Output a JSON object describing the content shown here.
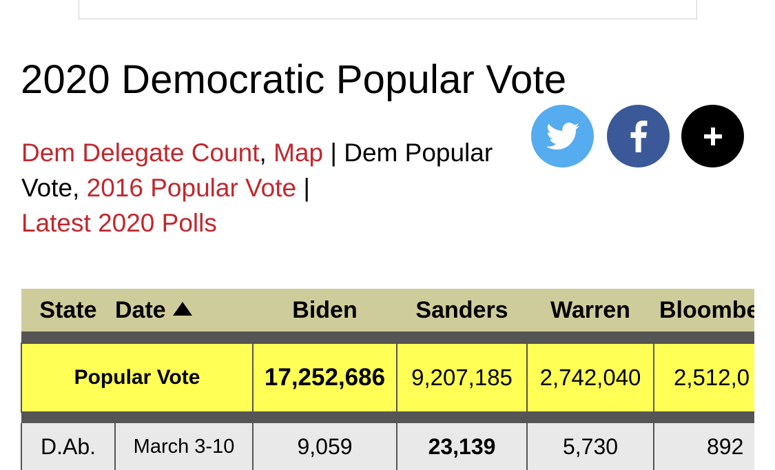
{
  "page": {
    "title": "2020 Democratic Popular Vote"
  },
  "nav": {
    "link1": "Dem Delegate Count",
    "sep1": ",",
    "link2": "Map",
    "text1": " | Dem Popular Vote, ",
    "link3": "2016 Popular Vote",
    "text2": " |",
    "link4": "Latest 2020 Polls"
  },
  "share": {
    "icons": [
      "twitter-icon",
      "facebook-icon",
      "plus-icon"
    ],
    "colors": {
      "twitter": "#55acee",
      "facebook": "#3b5998",
      "plus": "#000000"
    }
  },
  "table": {
    "headers": {
      "state": "State",
      "date": "Date",
      "biden": "Biden",
      "sanders": "Sanders",
      "warren": "Warren",
      "bloomberg": "Bloomberg"
    },
    "popular_vote": {
      "label": "Popular Vote",
      "biden": "17,252,686",
      "sanders": "9,207,185",
      "warren": "2,742,040",
      "bloomberg": "2,512,0"
    },
    "rows": [
      {
        "state": "D.Ab.",
        "date": "March 3-10",
        "biden": "9,059",
        "sanders": "23,139",
        "warren": "5,730",
        "bloomberg": "892"
      }
    ],
    "colors": {
      "header_bg": "#cfcc9b",
      "popular_vote_bg": "#ffff55",
      "row_bg": "#e9e9e9",
      "link_red": "#c0272d"
    }
  }
}
